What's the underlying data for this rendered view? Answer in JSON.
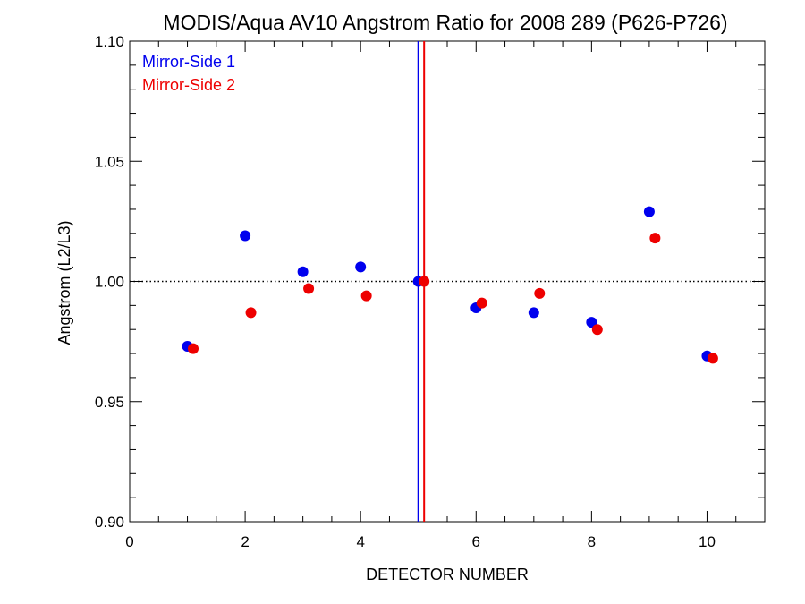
{
  "chart_data": {
    "type": "scatter",
    "title": "MODIS/Aqua AV10 Angstrom Ratio for 2008 289 (P626-P726)",
    "xlabel": "DETECTOR NUMBER",
    "ylabel": "Angstrom (L2/L3)",
    "xlim": [
      0,
      11
    ],
    "ylim": [
      0.9,
      1.1
    ],
    "x_ticks": [
      0,
      2,
      4,
      6,
      8,
      10
    ],
    "x_tick_labels": [
      "0",
      "2",
      "4",
      "6",
      "8",
      "10"
    ],
    "y_ticks": [
      0.9,
      0.95,
      1.0,
      1.05,
      1.1
    ],
    "y_tick_labels": [
      "0.90",
      "0.95",
      "1.00",
      "1.05",
      "1.10"
    ],
    "reference_line_y": 1.0,
    "vertical_lines": [
      {
        "x": 5.0,
        "color": "#0000ee"
      },
      {
        "x": 5.1,
        "color": "#ee0000"
      }
    ],
    "legend_position": "top-left",
    "series": [
      {
        "name": "Mirror-Side 1",
        "color": "#0000ee",
        "x": [
          1,
          2,
          3,
          4,
          5,
          6,
          7,
          8,
          9,
          10
        ],
        "y": [
          0.973,
          1.019,
          1.004,
          1.006,
          1.0,
          0.989,
          0.987,
          0.983,
          1.029,
          0.969
        ]
      },
      {
        "name": "Mirror-Side 2",
        "color": "#ee0000",
        "x": [
          1.1,
          2.1,
          3.1,
          4.1,
          5.1,
          6.1,
          7.1,
          8.1,
          9.1,
          10.1
        ],
        "y": [
          0.972,
          0.987,
          0.997,
          0.994,
          1.0,
          0.991,
          0.995,
          0.98,
          1.018,
          0.968
        ]
      }
    ]
  }
}
